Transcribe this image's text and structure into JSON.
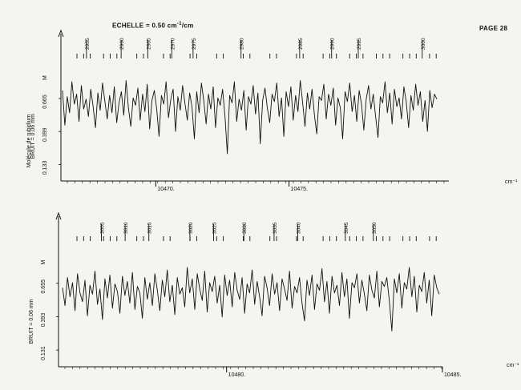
{
  "header": {
    "page_label": "PAGE 28",
    "echelle_label": "ECHELLE = 0.50 cm",
    "echelle_exp": "-1",
    "echelle_unit": "/cm"
  },
  "chart_data": [
    {
      "type": "line",
      "title": "",
      "molecule_label": "Molécule de rubidium",
      "bruit_label": "BRUIT = 0.06 mm",
      "x_unit_label": "cm⁻¹",
      "ylabel_mark": "M",
      "y_tick_labels": [
        "0.665",
        "0.399",
        "0.133"
      ],
      "y_ticks": [
        0.665,
        0.399,
        0.133
      ],
      "ylim": [
        0,
        0.93
      ],
      "x_tick_labels": [
        "10470.",
        "10475."
      ],
      "x_ticks": [
        10470,
        10475
      ],
      "x_range": [
        10466.5,
        10481
      ],
      "line_ids": [
        "2955",
        "2960",
        "2965",
        "2970",
        "2975",
        "2980",
        "2985",
        "2990",
        "2995",
        "3000"
      ],
      "line_positions": [
        10467.4,
        10468.7,
        10469.7,
        10470.6,
        10471.4,
        10473.2,
        10475.4,
        10476.6,
        10477.6,
        10480.0
      ],
      "series": [
        {
          "values": [
            0.73,
            0.45,
            0.68,
            0.55,
            0.8,
            0.62,
            0.7,
            0.48,
            0.77,
            0.58,
            0.66,
            0.52,
            0.74,
            0.6,
            0.43,
            0.71,
            0.57,
            0.79,
            0.64,
            0.5,
            0.69,
            0.55,
            0.76,
            0.47,
            0.63,
            0.72,
            0.53,
            0.81,
            0.59,
            0.44,
            0.67,
            0.61,
            0.75,
            0.49,
            0.7,
            0.56,
            0.78,
            0.42,
            0.65,
            0.73,
            0.58,
            0.36,
            0.69,
            0.62,
            0.8,
            0.51,
            0.66,
            0.74,
            0.4,
            0.68,
            0.57,
            0.77,
            0.63,
            0.49,
            0.71,
            0.6,
            0.34,
            0.72,
            0.55,
            0.79,
            0.65,
            0.46,
            0.7,
            0.58,
            0.76,
            0.43,
            0.67,
            0.61,
            0.74,
            0.52,
            0.22,
            0.69,
            0.63,
            0.8,
            0.48,
            0.66,
            0.57,
            0.73,
            0.41,
            0.68,
            0.62,
            0.77,
            0.54,
            0.71,
            0.3,
            0.65,
            0.75,
            0.59,
            0.47,
            0.7,
            0.64,
            0.79,
            0.52,
            0.67,
            0.36,
            0.72,
            0.6,
            0.76,
            0.49,
            0.69,
            0.56,
            0.81,
            0.63,
            0.44,
            0.71,
            0.58,
            0.74,
            0.53,
            0.38,
            0.68,
            0.65,
            0.78,
            0.5,
            0.7,
            0.61,
            0.75,
            0.45,
            0.67,
            0.59,
            0.34,
            0.72,
            0.64,
            0.79,
            0.56,
            0.69,
            0.48,
            0.73,
            0.62,
            0.41,
            0.66,
            0.77,
            0.58,
            0.7,
            0.52,
            0.35,
            0.68,
            0.63,
            0.8,
            0.55,
            0.71,
            0.46,
            0.74,
            0.6,
            0.67,
            0.5,
            0.76,
            0.64,
            0.43,
            0.69,
            0.57,
            0.78,
            0.61,
            0.72,
            0.48,
            0.65,
            0.4,
            0.73,
            0.59,
            0.7,
            0.66
          ]
        }
      ]
    },
    {
      "type": "line",
      "title": "",
      "bruit_label": "BRUIT = 0.06 mm",
      "x_unit_label": "cm⁻¹",
      "ylabel_mark": "M",
      "y_tick_labels": [
        "0.655",
        "0.393",
        "0.131"
      ],
      "y_ticks": [
        0.655,
        0.393,
        0.131
      ],
      "ylim": [
        0,
        0.93
      ],
      "x_tick_labels": [
        "10480.",
        "10485."
      ],
      "x_ticks": [
        10480,
        10485
      ],
      "x_range": [
        10476.2,
        10485
      ],
      "line_ids": [
        "3005",
        "3010",
        "3015",
        "3020",
        "3025",
        "3030",
        "3035",
        "3040",
        "3045",
        "3050"
      ],
      "line_positions": [
        10477.1,
        10477.65,
        10478.2,
        10479.15,
        10479.7,
        10480.4,
        10481.1,
        10481.65,
        10482.75,
        10483.4
      ],
      "series": [
        {
          "values": [
            0.62,
            0.48,
            0.7,
            0.55,
            0.66,
            0.44,
            0.73,
            0.58,
            0.51,
            0.68,
            0.4,
            0.64,
            0.57,
            0.75,
            0.49,
            0.61,
            0.37,
            0.69,
            0.54,
            0.72,
            0.46,
            0.65,
            0.59,
            0.42,
            0.71,
            0.56,
            0.67,
            0.5,
            0.74,
            0.45,
            0.63,
            0.58,
            0.38,
            0.7,
            0.53,
            0.66,
            0.48,
            0.73,
            0.6,
            0.44,
            0.68,
            0.55,
            0.76,
            0.51,
            0.64,
            0.41,
            0.7,
            0.57,
            0.62,
            0.47,
            0.78,
            0.58,
            0.69,
            0.45,
            0.73,
            0.61,
            0.52,
            0.75,
            0.43,
            0.66,
            0.59,
            0.71,
            0.5,
            0.64,
            0.39,
            0.72,
            0.56,
            0.68,
            0.47,
            0.74,
            0.6,
            0.53,
            0.7,
            0.42,
            0.65,
            0.58,
            0.76,
            0.49,
            0.67,
            0.55,
            0.4,
            0.71,
            0.62,
            0.48,
            0.73,
            0.57,
            0.66,
            0.44,
            0.69,
            0.61,
            0.52,
            0.75,
            0.46,
            0.63,
            0.58,
            0.7,
            0.5,
            0.36,
            0.68,
            0.56,
            0.72,
            0.45,
            0.65,
            0.6,
            0.77,
            0.51,
            0.67,
            0.42,
            0.71,
            0.58,
            0.64,
            0.48,
            0.74,
            0.55,
            0.69,
            0.38,
            0.66,
            0.62,
            0.73,
            0.5,
            0.68,
            0.57,
            0.44,
            0.72,
            0.6,
            0.54,
            0.75,
            0.47,
            0.67,
            0.63,
            0.7,
            0.52,
            0.28,
            0.69,
            0.58,
            0.73,
            0.46,
            0.66,
            0.61,
            0.78,
            0.55,
            0.71,
            0.43,
            0.64,
            0.59,
            0.74,
            0.5,
            0.68,
            0.4,
            0.72,
            0.62,
            0.57
          ]
        }
      ]
    }
  ]
}
